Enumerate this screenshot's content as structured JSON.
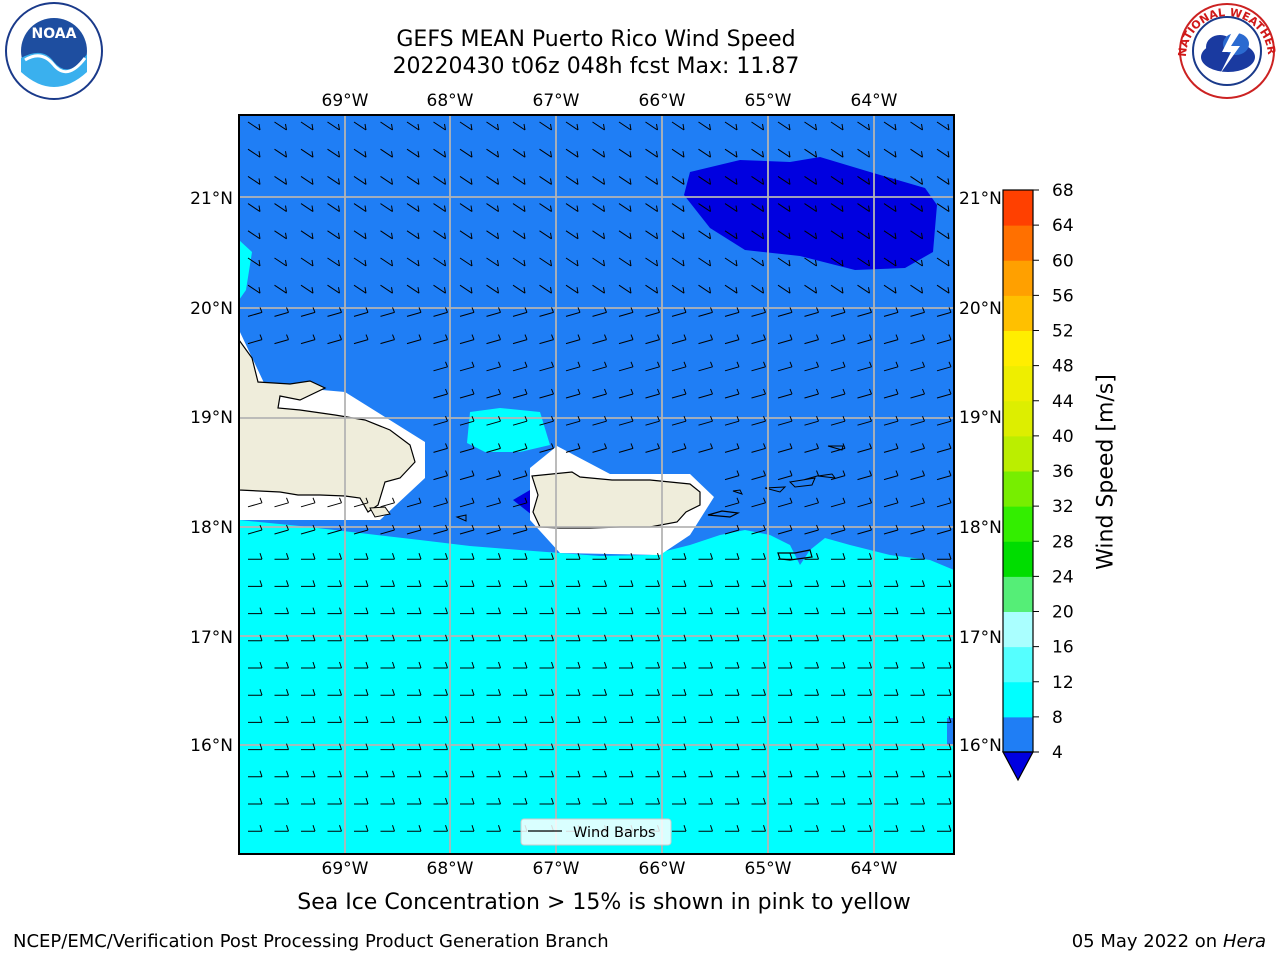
{
  "header": {
    "title_line1": "GEFS MEAN Puerto Rico Wind Speed",
    "title_line2": "20220430 t06z 048h fcst   Max: 11.87"
  },
  "logos": {
    "left": {
      "icon": "noaa-logo",
      "text": "NOAA"
    },
    "right": {
      "icon": "nws-logo",
      "ring_text": "NATIONAL WEATHER SERVICE"
    }
  },
  "map": {
    "lon_labels": [
      "69°W",
      "68°W",
      "67°W",
      "66°W",
      "65°W",
      "64°W"
    ],
    "lat_labels": [
      "21°N",
      "20°N",
      "19°N",
      "18°N",
      "17°N",
      "16°N"
    ],
    "legend_label": "Wind Barbs",
    "colors": {
      "land": "#efeddb",
      "band_4_8": "#1f7ef5",
      "band_8_12": "#00ffff",
      "below_4": "#0000e0",
      "grid": "#b4b4b4"
    }
  },
  "colorbar": {
    "label": "Wind Speed [m/s]",
    "ticks": [
      "4",
      "8",
      "12",
      "16",
      "20",
      "24",
      "28",
      "32",
      "36",
      "40",
      "44",
      "48",
      "52",
      "56",
      "60",
      "64",
      "68"
    ],
    "colors": [
      "#1f7ef5",
      "#00ffff",
      "#55ffff",
      "#aaffff",
      "#55ee77",
      "#00dd00",
      "#33ee00",
      "#77ee00",
      "#bbee00",
      "#ddee00",
      "#eeee00",
      "#ffee00",
      "#ffc000",
      "#ffa000",
      "#ff7000",
      "#ff4000",
      "#ff1000"
    ],
    "extend_color": "#0000e0"
  },
  "footer": {
    "subtitle": "Sea Ice Concentration > 15% is shown in pink to yellow",
    "left": "NCEP/EMC/Verification Post Processing Product Generation Branch",
    "right_date": "05 May 2022 on",
    "right_host": "Hera"
  }
}
